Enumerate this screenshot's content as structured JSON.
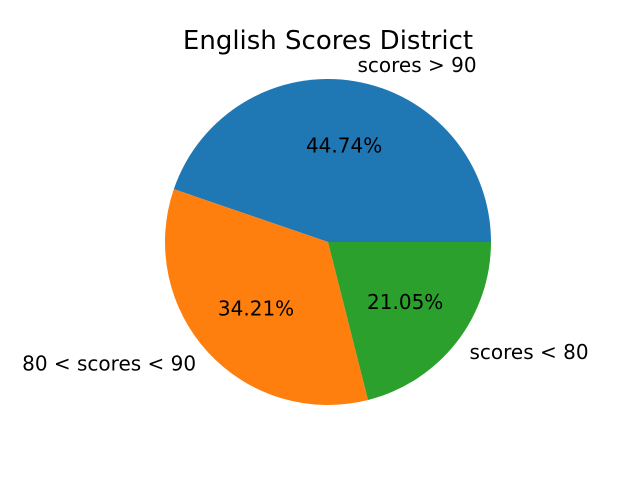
{
  "chart_data": {
    "type": "pie",
    "title": "English Scores District",
    "categories": [
      "scores > 90",
      "80 < scores < 90",
      "scores < 80"
    ],
    "values": [
      44.74,
      34.21,
      21.05
    ],
    "percent_labels": [
      "44.74%",
      "34.21%",
      "21.05%"
    ],
    "colors": [
      "#1f77b4",
      "#ff7f0e",
      "#2ca02c"
    ],
    "start_angle_deg": 0,
    "direction": "counterclockwise",
    "legend": "none"
  }
}
